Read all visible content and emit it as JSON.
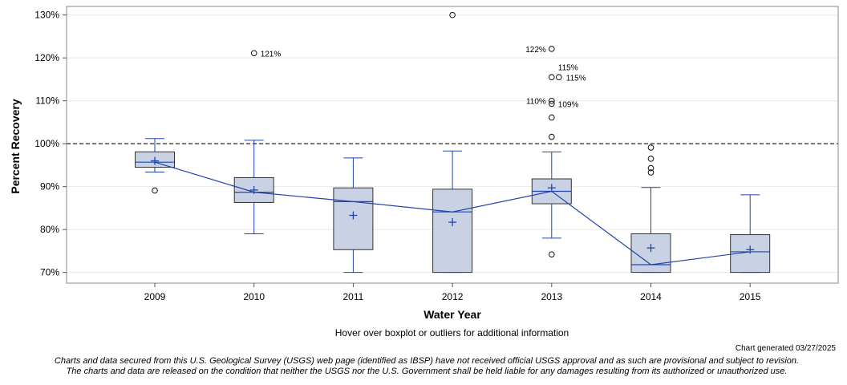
{
  "chart_data": {
    "type": "boxplot",
    "title": "",
    "xlabel": "Water Year",
    "ylabel": "Percent Recovery",
    "ylim": [
      67.5,
      132
    ],
    "yticks": [
      70,
      80,
      90,
      100,
      110,
      120,
      130
    ],
    "ytick_labels": [
      "70%",
      "80%",
      "90%",
      "100%",
      "110%",
      "120%",
      "130%"
    ],
    "reference_line": 100,
    "categories": [
      "2009",
      "2010",
      "2011",
      "2012",
      "2013",
      "2014",
      "2015"
    ],
    "boxes": [
      {
        "year": "2009",
        "whisker_low": 93.4,
        "q1": 94.5,
        "median": 95.7,
        "q3": 98.1,
        "whisker_high": 101.2,
        "mean": 96.0,
        "outliers": [
          {
            "value": 89.1,
            "label": ""
          }
        ]
      },
      {
        "year": "2010",
        "whisker_low": 79.0,
        "q1": 86.3,
        "median": 88.7,
        "q3": 92.1,
        "whisker_high": 100.8,
        "mean": 89.2,
        "outliers": [
          {
            "value": 121.1,
            "label": "121%"
          }
        ]
      },
      {
        "year": "2011",
        "whisker_low": 70.0,
        "q1": 75.3,
        "median": 86.5,
        "q3": 89.7,
        "whisker_high": 96.7,
        "mean": 83.3,
        "outliers": []
      },
      {
        "year": "2012",
        "whisker_low": 70.0,
        "q1": 70.0,
        "median": 84.1,
        "q3": 89.4,
        "whisker_high": 98.3,
        "mean": 81.7,
        "outliers": [
          {
            "value": 130.0,
            "label": ""
          }
        ]
      },
      {
        "year": "2013",
        "whisker_low": 78.0,
        "q1": 86.0,
        "median": 88.9,
        "q3": 91.8,
        "whisker_high": 98.1,
        "mean": 89.7,
        "outliers": [
          {
            "value": 122.1,
            "label": "122%",
            "side": "left"
          },
          {
            "value": 115.5,
            "label": "115%",
            "side": "right",
            "dx": 0
          },
          {
            "value": 115.5,
            "label": "115%",
            "side": "right",
            "dx": 1
          },
          {
            "value": 110.0,
            "label": "110%",
            "side": "left"
          },
          {
            "value": 109.3,
            "label": "109%",
            "side": "right"
          },
          {
            "value": 106.1,
            "label": ""
          },
          {
            "value": 101.6,
            "label": ""
          },
          {
            "value": 74.2,
            "label": ""
          }
        ]
      },
      {
        "year": "2014",
        "whisker_low": 70.0,
        "q1": 70.0,
        "median": 71.8,
        "q3": 79.0,
        "whisker_high": 89.8,
        "mean": 75.7,
        "outliers": [
          {
            "value": 99.1,
            "label": ""
          },
          {
            "value": 96.5,
            "label": ""
          },
          {
            "value": 94.3,
            "label": ""
          },
          {
            "value": 93.3,
            "label": ""
          }
        ]
      },
      {
        "year": "2015",
        "whisker_low": 70.0,
        "q1": 70.0,
        "median": 74.8,
        "q3": 78.8,
        "whisker_high": 88.1,
        "mean": 75.3,
        "outliers": []
      }
    ]
  },
  "colors": {
    "box_fill": "#c8d2e4",
    "box_stroke": "#333333",
    "series": "#2244aa",
    "reference_line": "#555555",
    "grid": "#e8e8e8",
    "frame": "#888888"
  },
  "notes": {
    "hover": "Hover over boxplot or outliers for additional information",
    "generated": "Chart generated 03/27/2025",
    "disclaimer_line1": "Charts and data secured from this U.S. Geological Survey (USGS) web page (identified as IBSP) have not received official USGS approval and as such are provisional and subject to revision.",
    "disclaimer_line2": "The charts and data are released on the condition that neither the USGS nor the U.S. Government shall be held liable for any damages resulting from its authorized or unauthorized use."
  }
}
